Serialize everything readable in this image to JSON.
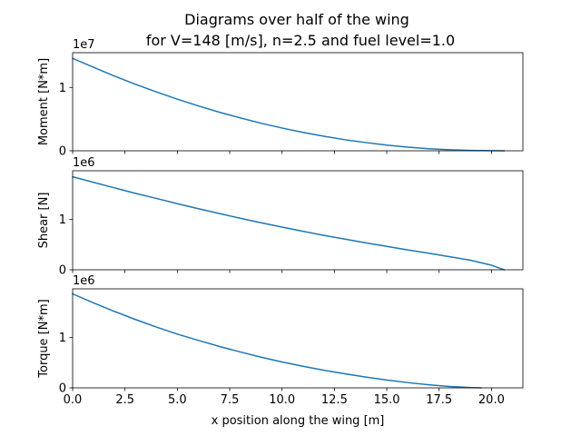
{
  "figure": {
    "title_line1": "Diagrams over half of the wing",
    "title_line2": "for V=148 [m/s], n=2.5 and fuel level=1.0"
  },
  "chart_data": [
    {
      "type": "line",
      "title": "Diagrams over half of the wing",
      "subtitle": "for V=148 [m/s], n=2.5 and fuel level=1.0",
      "xlabel": "",
      "ylabel": "Moment [N*m]",
      "offset_text": "1e7",
      "xlim": [
        0,
        21.5
      ],
      "ylim": [
        0,
        1.55
      ],
      "x_ticks": [
        0,
        2.5,
        5,
        7.5,
        10,
        12.5,
        15,
        17.5,
        20
      ],
      "x_tick_labels_shown": false,
      "y_ticks": [
        0,
        1
      ],
      "y_tick_labels": [
        "0",
        "1"
      ],
      "grid": false,
      "color": "#1f77b4",
      "series": [
        {
          "x": [
            0,
            1,
            2,
            3,
            4,
            5,
            6,
            7,
            8,
            9,
            10,
            11,
            12,
            13,
            14,
            15,
            16,
            17,
            18,
            19,
            20,
            20.6
          ],
          "values": [
            1.46,
            1.32,
            1.18,
            1.05,
            0.93,
            0.815,
            0.71,
            0.61,
            0.52,
            0.435,
            0.36,
            0.29,
            0.23,
            0.175,
            0.13,
            0.09,
            0.058,
            0.033,
            0.016,
            0.006,
            0.001,
            0.0
          ]
        }
      ]
    },
    {
      "type": "line",
      "xlabel": "",
      "ylabel": "Shear [N]",
      "offset_text": "1e6",
      "xlim": [
        0,
        21.5
      ],
      "ylim": [
        0,
        1.97
      ],
      "x_ticks": [
        0,
        2.5,
        5,
        7.5,
        10,
        12.5,
        15,
        17.5,
        20
      ],
      "x_tick_labels_shown": false,
      "y_ticks": [
        0,
        1
      ],
      "y_tick_labels": [
        "0",
        "1"
      ],
      "grid": false,
      "color": "#1f77b4",
      "series": [
        {
          "x": [
            0,
            1,
            2,
            3,
            4,
            5,
            6,
            7,
            8,
            9,
            10,
            11,
            12,
            13,
            14,
            15,
            16,
            17,
            18,
            19,
            20,
            20.6
          ],
          "values": [
            1.85,
            1.74,
            1.63,
            1.52,
            1.42,
            1.315,
            1.215,
            1.12,
            1.025,
            0.935,
            0.85,
            0.765,
            0.685,
            0.61,
            0.535,
            0.465,
            0.395,
            0.33,
            0.26,
            0.19,
            0.09,
            0.0
          ]
        }
      ]
    },
    {
      "type": "line",
      "xlabel": "x position along the wing [m]",
      "ylabel": "Torque [N*m]",
      "offset_text": "1e6",
      "xlim": [
        0,
        21.5
      ],
      "ylim": [
        0,
        1.97
      ],
      "x_ticks": [
        0,
        2.5,
        5,
        7.5,
        10,
        12.5,
        15,
        17.5,
        20
      ],
      "x_tick_labels": [
        "0.0",
        "2.5",
        "5.0",
        "7.5",
        "10.0",
        "12.5",
        "15.0",
        "17.5",
        "20.0"
      ],
      "x_tick_labels_shown": true,
      "y_ticks": [
        0,
        1
      ],
      "y_tick_labels": [
        "0",
        "1"
      ],
      "grid": false,
      "color": "#1f77b4",
      "series": [
        {
          "x": [
            0,
            1,
            2,
            3,
            4,
            5,
            6,
            7,
            8,
            9,
            10,
            11,
            12,
            13,
            14,
            15,
            16,
            17,
            18,
            19,
            19.5
          ],
          "values": [
            1.87,
            1.69,
            1.52,
            1.36,
            1.21,
            1.07,
            0.945,
            0.825,
            0.715,
            0.61,
            0.515,
            0.43,
            0.35,
            0.28,
            0.215,
            0.155,
            0.105,
            0.062,
            0.028,
            0.006,
            0.0
          ]
        }
      ]
    }
  ]
}
